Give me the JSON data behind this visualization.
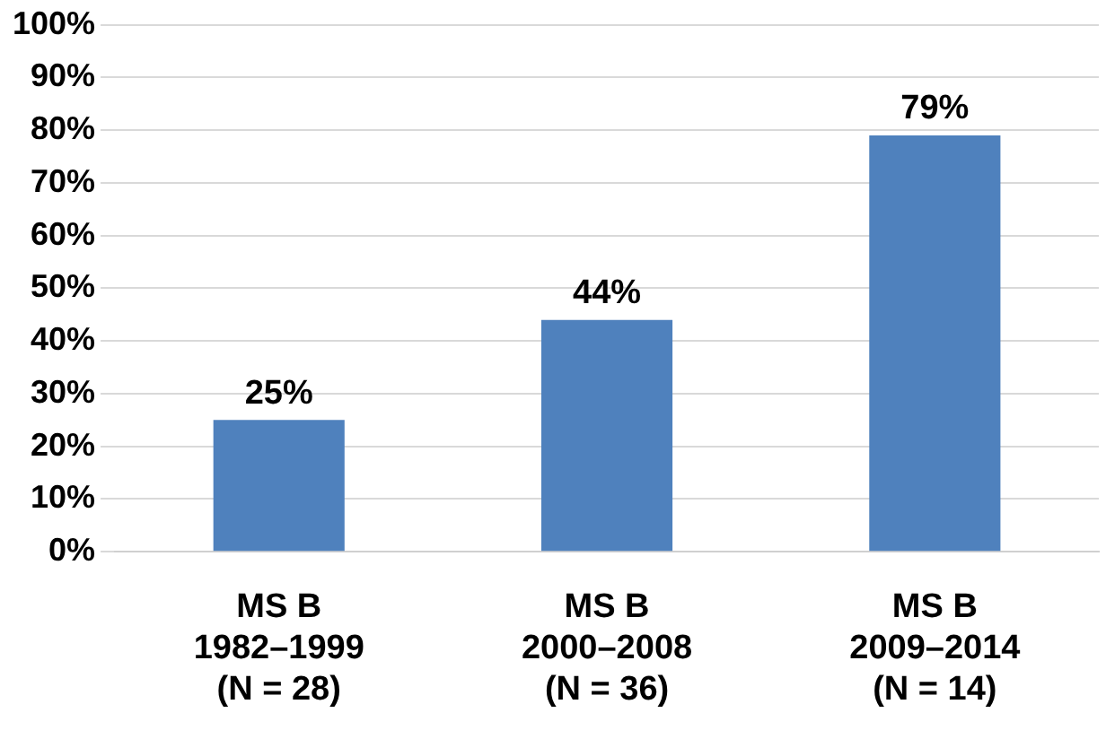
{
  "chart_data": {
    "type": "bar",
    "categories": [
      "MS B\n1982–1999\n(N = 28)",
      "MS B\n2000–2008\n(N = 36)",
      "MS B\n2009–2014\n(N = 14)"
    ],
    "values": [
      25,
      44,
      79
    ],
    "color": "#4f81bd",
    "value_labels": [
      "25%",
      "44%",
      "79%"
    ],
    "ylim": [
      0,
      100
    ],
    "yticks": [
      {
        "value": 0,
        "label": "0%"
      },
      {
        "value": 10,
        "label": "10%"
      },
      {
        "value": 20,
        "label": "20%"
      },
      {
        "value": 30,
        "label": "30%"
      },
      {
        "value": 40,
        "label": "40%"
      },
      {
        "value": 50,
        "label": "50%"
      },
      {
        "value": 60,
        "label": "60%"
      },
      {
        "value": 70,
        "label": "70%"
      },
      {
        "value": 80,
        "label": "80%"
      },
      {
        "value": 90,
        "label": "90%"
      },
      {
        "value": 100,
        "label": "100%"
      }
    ],
    "grid": "y",
    "legend": false
  }
}
